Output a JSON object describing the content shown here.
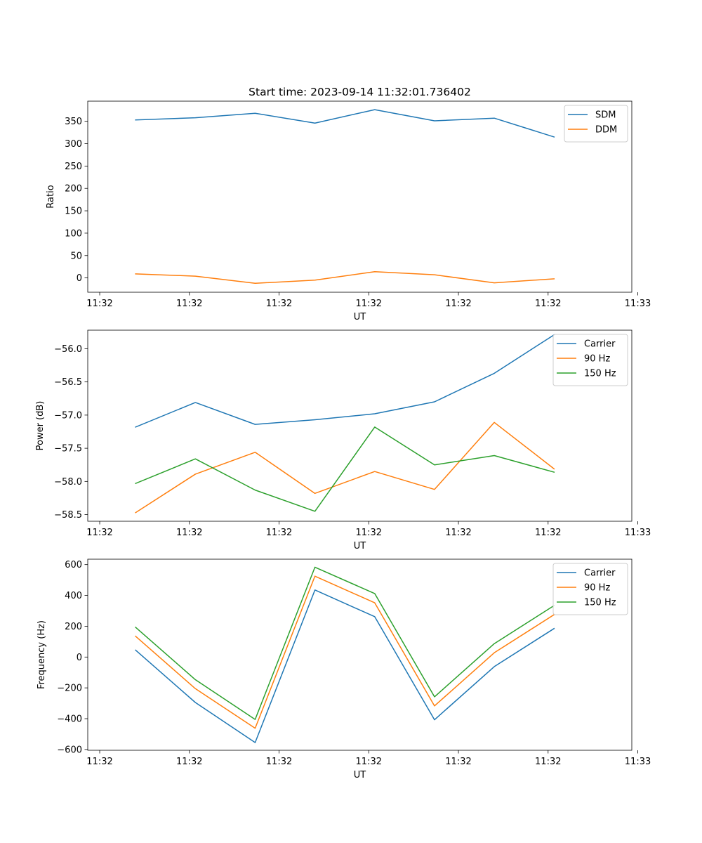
{
  "figure": {
    "title": "Start time: 2023-09-14 11:32:01.736402"
  },
  "colors": {
    "blue": "#1f77b4",
    "orange": "#ff7f0e",
    "green": "#2ca02c"
  },
  "chart_data": [
    {
      "type": "line",
      "title": "Start time: 2023-09-14 11:32:01.736402",
      "xlabel": "UT",
      "ylabel": "Ratio",
      "x": [
        1,
        2,
        3,
        4,
        5,
        6,
        7,
        8
      ],
      "xlim": [
        0.2,
        9.3
      ],
      "ylim": [
        -32,
        395
      ],
      "x_ticks": [
        0.4,
        1.9,
        3.4,
        4.9,
        6.4,
        7.9,
        9.4
      ],
      "x_tick_labels": [
        "11:32",
        "11:32",
        "11:32",
        "11:32",
        "11:32",
        "11:32",
        "11:33"
      ],
      "y_ticks": [
        0,
        50,
        100,
        150,
        200,
        250,
        300,
        350
      ],
      "y_tick_labels": [
        "0",
        "50",
        "100",
        "150",
        "200",
        "250",
        "300",
        "350"
      ],
      "legend_position": "top-right",
      "series": [
        {
          "name": "SDM",
          "color": "#1f77b4",
          "values": [
            353,
            358,
            368,
            346,
            376,
            351,
            357,
            315
          ]
        },
        {
          "name": "DDM",
          "color": "#ff7f0e",
          "values": [
            9,
            4,
            -12,
            -5,
            14,
            7,
            -11,
            -2
          ]
        }
      ]
    },
    {
      "type": "line",
      "title": "",
      "xlabel": "UT",
      "ylabel": "Power (dB)",
      "x": [
        1,
        2,
        3,
        4,
        5,
        6,
        7,
        8
      ],
      "xlim": [
        0.2,
        9.3
      ],
      "ylim": [
        -58.6,
        -55.72
      ],
      "x_ticks": [
        0.4,
        1.9,
        3.4,
        4.9,
        6.4,
        7.9,
        9.4
      ],
      "x_tick_labels": [
        "11:32",
        "11:32",
        "11:32",
        "11:32",
        "11:32",
        "11:32",
        "11:33"
      ],
      "y_ticks": [
        -58.5,
        -58.0,
        -57.5,
        -57.0,
        -56.5,
        -56.0
      ],
      "y_tick_labels": [
        "−58.5",
        "−58.0",
        "−57.5",
        "−57.0",
        "−56.5",
        "−56.0"
      ],
      "legend_position": "top-right",
      "series": [
        {
          "name": "Carrier",
          "color": "#1f77b4",
          "values": [
            -57.18,
            -56.81,
            -57.14,
            -57.07,
            -56.98,
            -56.8,
            -56.37,
            -55.79
          ]
        },
        {
          "name": "90 Hz",
          "color": "#ff7f0e",
          "values": [
            -58.47,
            -57.89,
            -57.56,
            -58.18,
            -57.85,
            -58.12,
            -57.11,
            -57.81
          ]
        },
        {
          "name": "150 Hz",
          "color": "#2ca02c",
          "values": [
            -58.03,
            -57.66,
            -58.13,
            -58.45,
            -57.18,
            -57.75,
            -57.61,
            -57.86
          ]
        }
      ]
    },
    {
      "type": "line",
      "title": "",
      "xlabel": "UT",
      "ylabel": "Frequency (Hz)",
      "x": [
        1,
        2,
        3,
        4,
        5,
        6,
        7,
        8
      ],
      "xlim": [
        0.2,
        9.3
      ],
      "ylim": [
        -605,
        635
      ],
      "x_ticks": [
        0.4,
        1.9,
        3.4,
        4.9,
        6.4,
        7.9,
        9.4
      ],
      "x_tick_labels": [
        "11:32",
        "11:32",
        "11:32",
        "11:32",
        "11:32",
        "11:32",
        "11:33"
      ],
      "y_ticks": [
        -600,
        -400,
        -200,
        0,
        200,
        400,
        600
      ],
      "y_tick_labels": [
        "−600",
        "−400",
        "−200",
        "0",
        "200",
        "400",
        "600"
      ],
      "legend_position": "top-right",
      "series": [
        {
          "name": "Carrier",
          "color": "#1f77b4",
          "values": [
            45,
            -295,
            -555,
            435,
            262,
            -407,
            -62,
            185
          ]
        },
        {
          "name": "90 Hz",
          "color": "#ff7f0e",
          "values": [
            135,
            -205,
            -462,
            525,
            352,
            -317,
            28,
            275
          ]
        },
        {
          "name": "150 Hz",
          "color": "#2ca02c",
          "values": [
            193,
            -147,
            -405,
            583,
            412,
            -258,
            87,
            334
          ]
        }
      ]
    }
  ]
}
